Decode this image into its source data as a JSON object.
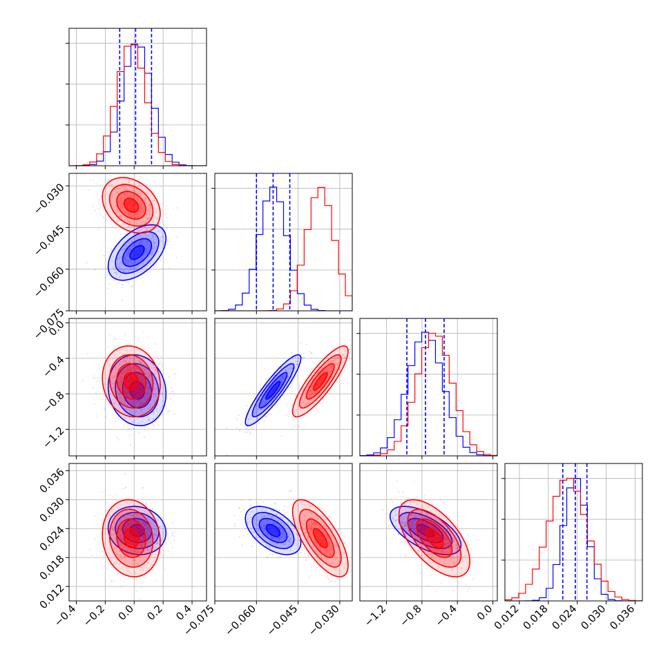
{
  "colors": {
    "series_a": "#0000ff",
    "series_b": "#ff0000",
    "grid": "#b0b0b0",
    "frame": "#000000"
  },
  "chart_data": {
    "type": "corner",
    "grid": true,
    "series": [
      {
        "color": "#0000ff",
        "means": [
          0.02,
          -0.054,
          -0.76,
          0.0236
        ],
        "sds": [
          0.1,
          0.005,
          0.2,
          0.0025
        ],
        "correlations": {
          "1-0": 0.5,
          "2-0": -0.1,
          "2-1": 0.9,
          "3-0": -0.1,
          "3-1": -0.5,
          "3-2": -0.6
        },
        "quantiles": [
          [
            -0.1,
            0.01,
            0.12
          ],
          [
            -0.06,
            -0.054,
            -0.048
          ],
          [
            -0.97,
            -0.76,
            -0.55
          ],
          [
            0.021,
            0.0236,
            0.026
          ]
        ]
      },
      {
        "color": "#ff0000",
        "means": [
          -0.02,
          -0.037,
          -0.66,
          0.022
        ],
        "sds": [
          0.1,
          0.005,
          0.2,
          0.004
        ],
        "correlations": {
          "1-0": -0.3,
          "2-0": -0.1,
          "2-1": 0.85,
          "3-0": -0.1,
          "3-1": -0.7,
          "3-2": -0.6
        }
      }
    ],
    "parameters": [
      {
        "range": [
          -0.45,
          0.5
        ],
        "ticks": [
          -0.4,
          -0.2,
          0.0,
          0.2,
          0.4
        ],
        "tick_labels": [
          "−0.4",
          "−0.2",
          "0.0",
          "0.2",
          "0.4"
        ]
      },
      {
        "range": [
          -0.075,
          -0.0255
        ],
        "ticks": [
          -0.075,
          -0.06,
          -0.045,
          -0.03
        ],
        "tick_labels": [
          "−0.075",
          "−0.060",
          "−0.045",
          "−0.030"
        ]
      },
      {
        "range": [
          -1.5,
          0.05
        ],
        "ticks": [
          -1.2,
          -0.8,
          -0.4,
          0.0
        ],
        "tick_labels": [
          "−1.2",
          "−0.8",
          "−0.4",
          "0.0"
        ]
      },
      {
        "range": [
          0.009,
          0.0375
        ],
        "ticks": [
          0.012,
          0.018,
          0.024,
          0.03,
          0.036
        ],
        "tick_labels": [
          "0.012",
          "0.018",
          "0.024",
          "0.030",
          "0.036"
        ]
      }
    ]
  }
}
